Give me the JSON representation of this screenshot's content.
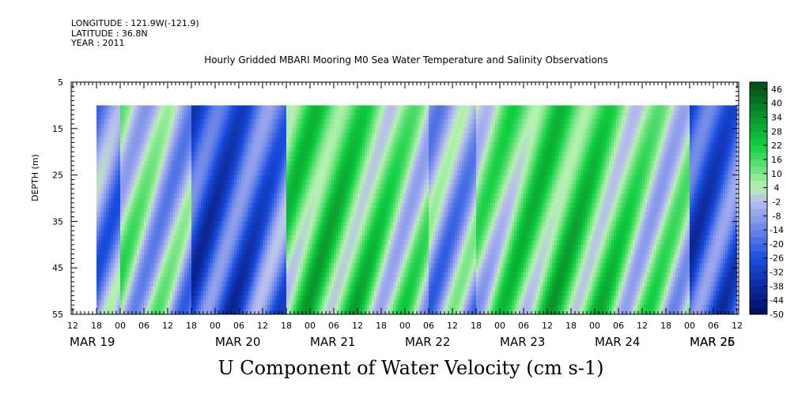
{
  "header": {
    "longitude": "LONGITUDE : 121.9W(-121.9)",
    "latitude": "LATITUDE : 36.8N",
    "year": "YEAR : 2011"
  },
  "chart_data": {
    "type": "heatmap",
    "title": "Hourly Gridded MBARI Mooring M0 Sea Water Temperature and Salinity Observations",
    "xlabel": "",
    "ylabel": "DEPTH (m)",
    "variable_label": "U Component of Water Velocity (cm s-1)",
    "y_reversed": true,
    "ylim": [
      5,
      55
    ],
    "y_ticks": [
      5,
      15,
      25,
      35,
      45,
      55
    ],
    "data_depth_range": [
      10,
      55
    ],
    "x_start_label": "MAR 19 12:00",
    "x_tick_labels": [
      "12",
      "18",
      "00",
      "06",
      "12",
      "18",
      "00",
      "06",
      "12",
      "18",
      "00",
      "06",
      "12",
      "18",
      "00",
      "06",
      "12",
      "18",
      "00",
      "06",
      "12",
      "18",
      "00",
      "06",
      "12",
      "18",
      "00",
      "06",
      "12"
    ],
    "day_labels": [
      "MAR 19",
      "MAR 20",
      "MAR 21",
      "MAR 22",
      "MAR 23",
      "MAR 24",
      "MAR 25",
      "MAR 26"
    ],
    "colorbar_levels": [
      -50,
      -44,
      -38,
      -32,
      -26,
      -20,
      -14,
      -8,
      -2,
      4,
      10,
      16,
      22,
      28,
      34,
      40,
      46
    ],
    "colorbar_range": [
      -50,
      49
    ],
    "colors": {
      "negative_strong": "#000a60",
      "negative_mid": "#1a4ee0",
      "negative_weak": "#b8bcf0",
      "positive_weak": "#b6f2b0",
      "positive_mid": "#10d040",
      "positive_strong": "#004c14"
    },
    "pattern_hours_sign": [
      {
        "start_hour": 6,
        "end_hour": 12,
        "sign": "negative"
      },
      {
        "start_hour": 12,
        "end_hour": 30,
        "sign": "alternating"
      },
      {
        "start_hour": 30,
        "end_hour": 54,
        "sign": "negative"
      },
      {
        "start_hour": 54,
        "end_hour": 90,
        "sign": "positive"
      },
      {
        "start_hour": 90,
        "end_hour": 102,
        "sign": "mixed"
      },
      {
        "start_hour": 102,
        "end_hour": 156,
        "sign": "positive"
      },
      {
        "start_hour": 156,
        "end_hour": 168,
        "sign": "negative"
      },
      {
        "start_hour": 168,
        "end_hour": 180,
        "sign": "positive"
      }
    ]
  }
}
